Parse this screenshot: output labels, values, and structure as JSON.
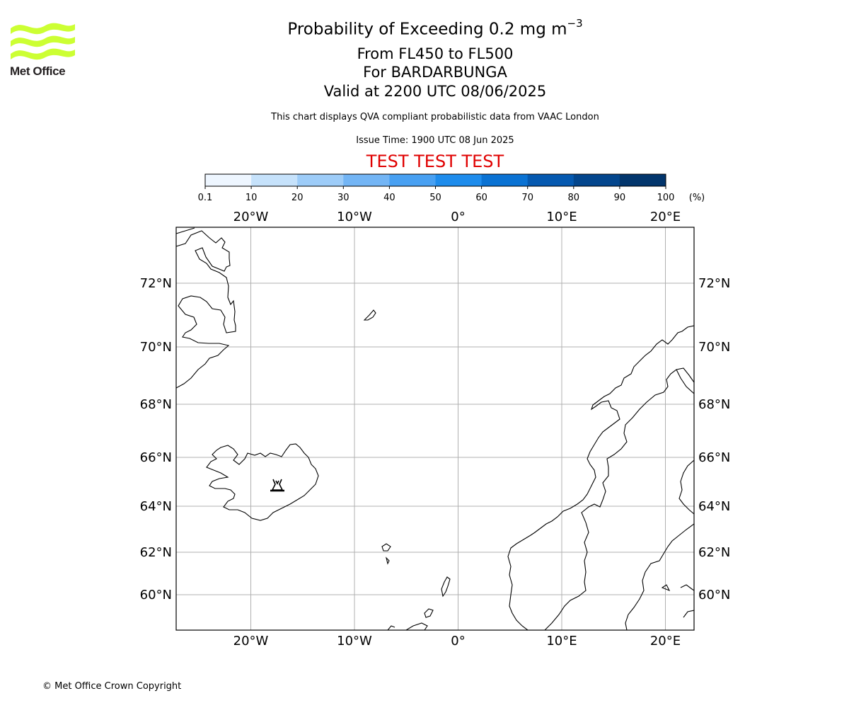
{
  "title": {
    "line1_prefix": "Probability of Exceeding 0.2 mg m",
    "line1_exponent": "−3",
    "line2": "From FL450 to FL500",
    "line3": "For BARDARBUNGA",
    "line4": "Valid at 2200 UTC 08/06/2025",
    "info": "This chart displays QVA compliant probabilistic data from VAAC London",
    "issue_time": "Issue Time: 1900 UTC 08 Jun 2025",
    "test_banner": "TEST TEST TEST"
  },
  "logo": {
    "text": "Met Office",
    "color": "#ccff33"
  },
  "colorbar": {
    "ticks": [
      "0.1",
      "10",
      "20",
      "30",
      "40",
      "50",
      "60",
      "70",
      "80",
      "90",
      "100"
    ],
    "unit": "(%)",
    "colors": [
      "#eef6ff",
      "#c6e2fb",
      "#9dccf8",
      "#73b5f5",
      "#48a0f2",
      "#1e8cec",
      "#0a72d3",
      "#0559b0",
      "#03468d",
      "#02356c",
      "#01244c"
    ]
  },
  "map": {
    "lon_labels": [
      "20°W",
      "10°W",
      "0°",
      "10°E",
      "20°E"
    ],
    "lat_labels": [
      "72°N",
      "70°N",
      "68°N",
      "66°N",
      "64°N",
      "62°N",
      "60°N"
    ],
    "lon_values": [
      -20,
      -10,
      0,
      10,
      20
    ],
    "lat_values": [
      72,
      70,
      68,
      66,
      64,
      62,
      60
    ],
    "volcano": {
      "name": "BARDARBUNGA",
      "lon": -17.5,
      "lat": 64.6,
      "icon": "volcano-icon"
    },
    "grid_color": "#b0b0b0"
  },
  "footer": {
    "copyright": "© Met Office Crown Copyright"
  }
}
